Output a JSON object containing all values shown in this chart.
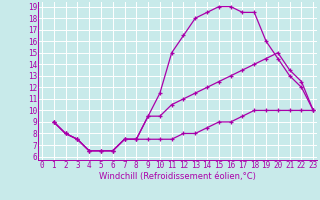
{
  "xlabel": "Windchill (Refroidissement éolien,°C)",
  "bg_color": "#c8eaea",
  "grid_color": "#b0d8d8",
  "line_color": "#aa00aa",
  "line1_x": [
    1,
    2,
    3,
    4,
    5,
    6,
    7,
    8,
    9,
    10,
    11,
    12,
    13,
    14,
    15,
    16,
    17,
    18,
    19,
    20,
    21,
    22,
    23
  ],
  "line1_y": [
    9,
    8,
    7.5,
    6.5,
    6.5,
    6.5,
    7.5,
    7.5,
    9.5,
    11.5,
    15,
    16.5,
    18,
    18.5,
    19,
    19,
    18.5,
    18.5,
    16,
    14.5,
    13,
    12,
    10
  ],
  "line2_x": [
    1,
    2,
    3,
    4,
    5,
    6,
    7,
    8,
    9,
    10,
    11,
    12,
    13,
    14,
    15,
    16,
    17,
    18,
    19,
    20,
    21,
    22,
    23
  ],
  "line2_y": [
    9,
    8,
    7.5,
    6.5,
    6.5,
    6.5,
    7.5,
    7.5,
    9.5,
    9.5,
    10.5,
    11,
    11.5,
    12,
    12.5,
    13,
    13.5,
    14,
    14.5,
    15,
    13.5,
    12.5,
    10
  ],
  "line3_x": [
    1,
    2,
    3,
    4,
    5,
    6,
    7,
    8,
    9,
    10,
    11,
    12,
    13,
    14,
    15,
    16,
    17,
    18,
    19,
    20,
    21,
    22,
    23
  ],
  "line3_y": [
    9,
    8,
    7.5,
    6.5,
    6.5,
    6.5,
    7.5,
    7.5,
    7.5,
    7.5,
    7.5,
    8,
    8,
    8.5,
    9,
    9,
    9.5,
    10,
    10,
    10,
    10,
    10,
    10
  ],
  "xlim": [
    -0.3,
    23.3
  ],
  "ylim": [
    5.7,
    19.4
  ],
  "yticks": [
    6,
    7,
    8,
    9,
    10,
    11,
    12,
    13,
    14,
    15,
    16,
    17,
    18,
    19
  ],
  "xticks": [
    0,
    1,
    2,
    3,
    4,
    5,
    6,
    7,
    8,
    9,
    10,
    11,
    12,
    13,
    14,
    15,
    16,
    17,
    18,
    19,
    20,
    21,
    22,
    23
  ],
  "marker": "+",
  "markersize": 3.5,
  "linewidth": 0.9,
  "tick_fontsize": 5.5,
  "xlabel_fontsize": 6.0
}
